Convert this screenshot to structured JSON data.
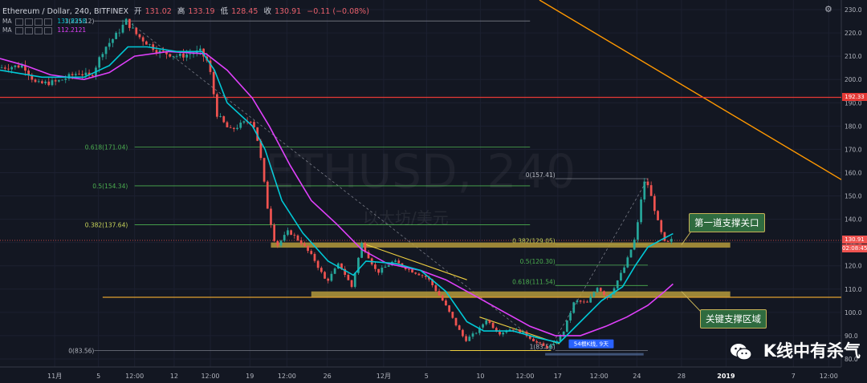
{
  "header": {
    "symbol": "Ethereum / Dollar, 240, BITFINEX",
    "open_label": "开",
    "open": "131.02",
    "high_label": "高",
    "high": "133.19",
    "low_label": "低",
    "low": "128.45",
    "close_label": "收",
    "close": "130.91",
    "change": "−0.11 (−0.08%)"
  },
  "indicators": [
    {
      "label": "MA",
      "value": "133.8318",
      "color": "#00c8d6"
    },
    {
      "label": "MA",
      "value": "112.2121",
      "color": "#e040fb"
    }
  ],
  "watermark": {
    "ticker": "ETHUSD, 240",
    "subtitle": "以太坊/美元"
  },
  "callouts": {
    "first_support": "第一道支撑关口",
    "key_support": "关键支撑区域"
  },
  "brand": {
    "text": "K线中有杀气",
    "icon": "wechat-icon"
  },
  "countdown": "02:08:45",
  "colors": {
    "background": "#131722",
    "grid": "#1c2030",
    "up": "#26a69a",
    "down": "#ef5350",
    "ma_fast": "#00c8d6",
    "ma_slow": "#e040fb",
    "fib": "#4caf50",
    "support_zone": "#b59a3b",
    "resistance": "#e53935",
    "trendline": "#ff9800"
  },
  "chart_data": {
    "type": "candlestick",
    "y_axis": {
      "min": 80,
      "max": 230,
      "ticks": [
        230,
        220,
        210,
        200,
        190,
        180,
        170,
        160,
        150,
        140,
        130,
        120,
        110,
        100,
        90,
        80
      ]
    },
    "x_axis": {
      "ticks": [
        {
          "label": "11月",
          "pos": 0.065
        },
        {
          "label": "5",
          "pos": 0.117
        },
        {
          "label": "12:00",
          "pos": 0.16
        },
        {
          "label": "12",
          "pos": 0.207
        },
        {
          "label": "12:00",
          "pos": 0.25
        },
        {
          "label": "19",
          "pos": 0.297
        },
        {
          "label": "12:00",
          "pos": 0.341
        },
        {
          "label": "26",
          "pos": 0.389
        },
        {
          "label": "12月",
          "pos": 0.456
        },
        {
          "label": "5",
          "pos": 0.507
        },
        {
          "label": "10",
          "pos": 0.571
        },
        {
          "label": "12:00",
          "pos": 0.624
        },
        {
          "label": "17",
          "pos": 0.663
        },
        {
          "label": "12:00",
          "pos": 0.712
        },
        {
          "label": "24",
          "pos": 0.757
        },
        {
          "label": "28",
          "pos": 0.81
        },
        {
          "label": "2019",
          "pos": 0.863
        },
        {
          "label": "7",
          "pos": 0.943
        },
        {
          "label": "12:00",
          "pos": 0.985
        }
      ]
    },
    "price_path": [
      [
        0.0,
        205
      ],
      [
        0.03,
        206
      ],
      [
        0.045,
        198
      ],
      [
        0.07,
        199
      ],
      [
        0.095,
        203
      ],
      [
        0.11,
        201
      ],
      [
        0.125,
        213
      ],
      [
        0.14,
        219
      ],
      [
        0.152,
        225.12
      ],
      [
        0.165,
        219
      ],
      [
        0.19,
        212
      ],
      [
        0.215,
        210
      ],
      [
        0.24,
        212
      ],
      [
        0.25,
        207
      ],
      [
        0.26,
        185
      ],
      [
        0.275,
        178
      ],
      [
        0.29,
        181
      ],
      [
        0.302,
        183
      ],
      [
        0.31,
        171
      ],
      [
        0.32,
        145
      ],
      [
        0.33,
        128
      ],
      [
        0.345,
        135
      ],
      [
        0.36,
        130
      ],
      [
        0.375,
        123
      ],
      [
        0.39,
        113
      ],
      [
        0.405,
        121
      ],
      [
        0.42,
        111
      ],
      [
        0.432,
        129.5
      ],
      [
        0.45,
        117
      ],
      [
        0.47,
        122
      ],
      [
        0.49,
        118
      ],
      [
        0.51,
        115
      ],
      [
        0.53,
        104
      ],
      [
        0.545,
        94
      ],
      [
        0.555,
        88
      ],
      [
        0.57,
        92
      ],
      [
        0.58,
        97
      ],
      [
        0.595,
        91
      ],
      [
        0.61,
        93
      ],
      [
        0.625,
        91
      ],
      [
        0.64,
        87
      ],
      [
        0.65,
        85
      ],
      [
        0.66,
        86
      ],
      [
        0.672,
        92
      ],
      [
        0.685,
        105
      ],
      [
        0.7,
        104
      ],
      [
        0.712,
        111
      ],
      [
        0.725,
        106
      ],
      [
        0.735,
        113
      ],
      [
        0.745,
        120
      ],
      [
        0.758,
        133
      ],
      [
        0.766,
        154
      ],
      [
        0.77,
        157.41
      ],
      [
        0.778,
        147
      ],
      [
        0.786,
        136
      ],
      [
        0.793,
        129
      ],
      [
        0.8,
        131
      ]
    ],
    "ma_fast": [
      [
        0.0,
        204
      ],
      [
        0.05,
        201
      ],
      [
        0.1,
        201
      ],
      [
        0.13,
        206
      ],
      [
        0.152,
        214
      ],
      [
        0.175,
        214
      ],
      [
        0.21,
        212
      ],
      [
        0.24,
        212
      ],
      [
        0.255,
        204
      ],
      [
        0.27,
        190
      ],
      [
        0.3,
        180
      ],
      [
        0.315,
        170
      ],
      [
        0.335,
        148
      ],
      [
        0.36,
        134
      ],
      [
        0.39,
        122
      ],
      [
        0.42,
        116
      ],
      [
        0.435,
        122
      ],
      [
        0.47,
        121
      ],
      [
        0.5,
        118
      ],
      [
        0.53,
        109
      ],
      [
        0.555,
        96
      ],
      [
        0.575,
        92
      ],
      [
        0.61,
        92
      ],
      [
        0.64,
        89
      ],
      [
        0.665,
        87
      ],
      [
        0.69,
        96
      ],
      [
        0.715,
        105
      ],
      [
        0.74,
        111
      ],
      [
        0.755,
        120
      ],
      [
        0.77,
        128
      ],
      [
        0.785,
        131
      ],
      [
        0.8,
        133.8
      ]
    ],
    "ma_slow": [
      [
        0.0,
        209
      ],
      [
        0.03,
        206
      ],
      [
        0.06,
        202
      ],
      [
        0.1,
        200
      ],
      [
        0.13,
        203
      ],
      [
        0.16,
        210
      ],
      [
        0.2,
        212
      ],
      [
        0.245,
        211
      ],
      [
        0.27,
        204
      ],
      [
        0.3,
        192
      ],
      [
        0.32,
        180
      ],
      [
        0.345,
        163
      ],
      [
        0.37,
        148
      ],
      [
        0.4,
        138
      ],
      [
        0.43,
        127
      ],
      [
        0.46,
        121
      ],
      [
        0.5,
        118
      ],
      [
        0.53,
        114
      ],
      [
        0.56,
        108
      ],
      [
        0.6,
        100
      ],
      [
        0.63,
        94
      ],
      [
        0.66,
        90
      ],
      [
        0.69,
        90
      ],
      [
        0.72,
        94
      ],
      [
        0.745,
        98
      ],
      [
        0.77,
        103
      ],
      [
        0.79,
        109
      ],
      [
        0.8,
        112.2
      ]
    ],
    "fib_left": [
      {
        "label": "0.618(171.04)",
        "value": 171.04
      },
      {
        "label": "0.5(154.34)",
        "value": 154.34
      },
      {
        "label": "0.382(137.64)",
        "value": 137.64
      },
      {
        "label": "1(225.12)",
        "value": 225.12
      },
      {
        "label": "0(83.56)",
        "value": 83.56
      }
    ],
    "fib_right": [
      {
        "label": "0(157.41)",
        "value": 157.41
      },
      {
        "label": "0.382(129.05)",
        "value": 129.05
      },
      {
        "label": "0.5(120.30)",
        "value": 120.3
      },
      {
        "label": "0.618(111.54)",
        "value": 111.54
      },
      {
        "label": "1(83.56)",
        "value": 83.56
      }
    ],
    "resistance_level": 192.33,
    "resistance_label": "192.33",
    "current_price": 130.91,
    "current_price_label": "130.91",
    "support_zones": [
      {
        "low": 127.8,
        "high": 130.0
      },
      {
        "low": 106.5,
        "high": 109.0
      }
    ],
    "support_line": 106.5,
    "bar_badge": "54根K线, 9天"
  }
}
